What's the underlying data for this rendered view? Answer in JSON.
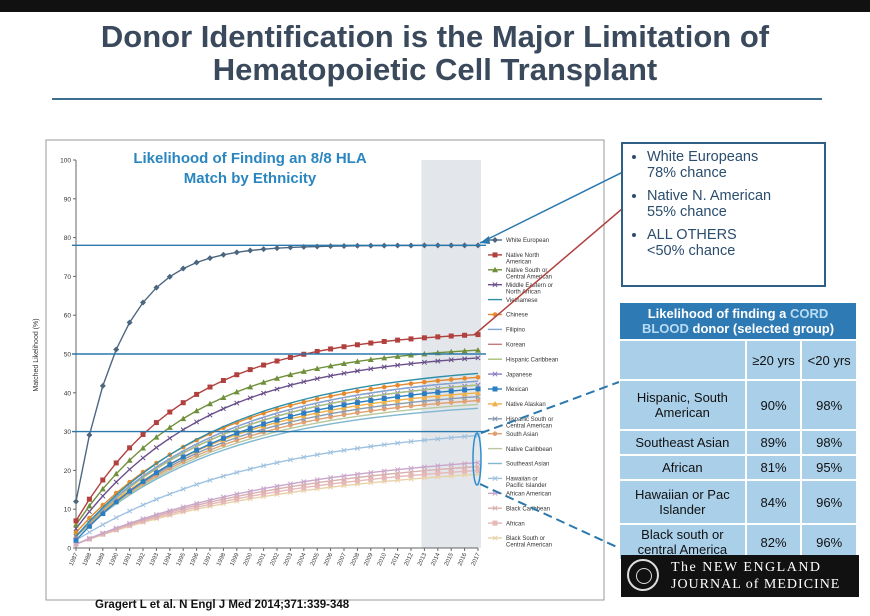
{
  "slide": {
    "title_line1": "Donor Identification is the Major Limitation of",
    "title_line2": "Hematopoietic Cell Transplant",
    "citation": "Gragert L et al. N Engl J Med 2014;371:339-348"
  },
  "callout": {
    "items": [
      {
        "line1": "White Europeans",
        "line2": "78% chance"
      },
      {
        "line1": "Native N. American",
        "line2": "55% chance"
      },
      {
        "line1": "ALL OTHERS",
        "line2": "<50% chance"
      }
    ]
  },
  "cord_table": {
    "title_part1": "Likelihood of finding a ",
    "title_highlight1": "CORD",
    "title_highlight2": "BLOOD",
    "title_part2": " donor (selected group)",
    "col1": "≥20 yrs",
    "col2": "<20 yrs",
    "rows": [
      {
        "group": "Hispanic, South American",
        "a": "90%",
        "b": "98%"
      },
      {
        "group": "Southeast Asian",
        "a": "89%",
        "b": "98%"
      },
      {
        "group": "African",
        "a": "81%",
        "b": "95%"
      },
      {
        "group": "Hawaiian or Pac Islander",
        "a": "84%",
        "b": "96%"
      },
      {
        "group": "Black south or central America",
        "a": "82%",
        "b": "96%"
      }
    ]
  },
  "journal": {
    "line1": "The NEW ENGLAND",
    "line2": "JOURNAL of MEDICINE"
  },
  "chart_data": {
    "type": "line",
    "title": "Likelihood of Finding an 8/8 HLA Match by Ethnicity",
    "xlabel": "",
    "ylabel": "Matched Likelihood (%)",
    "ylim": [
      0,
      100
    ],
    "yticks": [
      0,
      10,
      20,
      30,
      40,
      50,
      60,
      70,
      80,
      90,
      100
    ],
    "x": [
      1987,
      1988,
      1989,
      1990,
      1991,
      1992,
      1993,
      1994,
      1995,
      1996,
      1997,
      1998,
      1999,
      2000,
      2001,
      2002,
      2003,
      2004,
      2005,
      2006,
      2007,
      2008,
      2009,
      2010,
      2011,
      2012,
      2013,
      2014,
      2015,
      2016,
      2017
    ],
    "shaded_region": [
      2013,
      2017
    ],
    "reference_lines": [
      78,
      50,
      30
    ],
    "grid": false,
    "legend_position": "right",
    "series": [
      {
        "name": "White European",
        "color": "#4d6680",
        "marker": "diamond",
        "start": 12,
        "end": 78,
        "k": 0.3
      },
      {
        "name": "Native North American",
        "color": "#b0413e",
        "marker": "square",
        "start": 7,
        "end": 55,
        "k": 0.12
      },
      {
        "name": "Native South or Central American",
        "color": "#6f8f3a",
        "marker": "triangle",
        "start": 6,
        "end": 51,
        "k": 0.11
      },
      {
        "name": "Middle Eastern or North African",
        "color": "#6a4f8a",
        "marker": "x",
        "start": 5,
        "end": 49,
        "k": 0.1
      },
      {
        "name": "Vietnamese",
        "color": "#2f8fa8",
        "marker": "none",
        "start": 3,
        "end": 45,
        "k": 0.09
      },
      {
        "name": "Chinese",
        "color": "#e58a2e",
        "marker": "circle",
        "start": 4,
        "end": 44,
        "k": 0.09
      },
      {
        "name": "Filipino",
        "color": "#7ea6d6",
        "marker": "none",
        "start": 3,
        "end": 43,
        "k": 0.09
      },
      {
        "name": "Korean",
        "color": "#c77b7b",
        "marker": "none",
        "start": 3,
        "end": 43,
        "k": 0.09
      },
      {
        "name": "Hispanic Caribbean",
        "color": "#a8c07a",
        "marker": "none",
        "start": 3,
        "end": 42,
        "k": 0.09
      },
      {
        "name": "Japanese",
        "color": "#8e7cc3",
        "marker": "x",
        "start": 3,
        "end": 42,
        "k": 0.09
      },
      {
        "name": "Mexican",
        "color": "#2a7fc1",
        "marker": "square",
        "start": 2,
        "end": 41,
        "k": 0.09
      },
      {
        "name": "Native Alaskan",
        "color": "#f0b04a",
        "marker": "triangle",
        "start": 3,
        "end": 40,
        "k": 0.09
      },
      {
        "name": "Hispanic South or Central American",
        "color": "#8a9ab0",
        "marker": "x",
        "start": 3,
        "end": 39,
        "k": 0.09
      },
      {
        "name": "South Asian",
        "color": "#e0a070",
        "marker": "circle",
        "start": 3,
        "end": 38,
        "k": 0.09
      },
      {
        "name": "Native Caribbean",
        "color": "#b8c8a0",
        "marker": "none",
        "start": 3,
        "end": 37,
        "k": 0.09
      },
      {
        "name": "Southeast Asian",
        "color": "#7fb7d0",
        "marker": "none",
        "start": 3,
        "end": 36,
        "k": 0.09
      },
      {
        "name": "Hawaiian or Pacific Islander",
        "color": "#9fc2e0",
        "marker": "x",
        "start": 2,
        "end": 29,
        "k": 0.07
      },
      {
        "name": "African American",
        "color": "#c9a6c9",
        "marker": "x",
        "start": 1,
        "end": 22,
        "k": 0.06
      },
      {
        "name": "Black Caribbean",
        "color": "#d9b0b0",
        "marker": "x",
        "start": 1,
        "end": 21,
        "k": 0.06
      },
      {
        "name": "African",
        "color": "#e6b8b8",
        "marker": "square",
        "start": 1,
        "end": 20,
        "k": 0.06
      },
      {
        "name": "Black South or Central American",
        "color": "#e8d2a8",
        "marker": "x",
        "start": 1,
        "end": 19,
        "k": 0.06
      }
    ]
  }
}
